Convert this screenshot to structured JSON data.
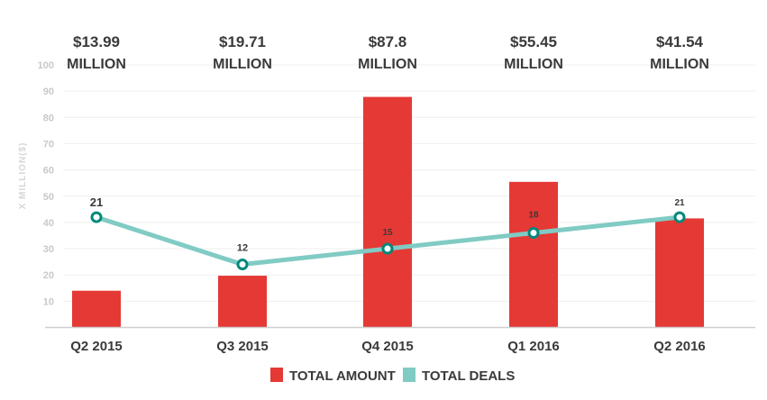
{
  "chart_data": {
    "type": "bar",
    "categories": [
      "Q2 2015",
      "Q3 2015",
      "Q4 2015",
      "Q1 2016",
      "Q2 2016"
    ],
    "series": [
      {
        "name": "TOTAL AMOUNT",
        "kind": "bar",
        "color": "#e53935",
        "values": [
          13.99,
          19.71,
          87.8,
          55.45,
          41.54
        ],
        "labels": [
          [
            "$13.99",
            "MILLION"
          ],
          [
            "$19.71",
            "MILLION"
          ],
          [
            "$87.8",
            "MILLION"
          ],
          [
            "$55.45",
            "MILLION"
          ],
          [
            "$41.54",
            "MILLION"
          ]
        ]
      },
      {
        "name": "TOTAL DEALS",
        "kind": "line",
        "color": "#80cbc4",
        "marker_color": "#00897b",
        "values": [
          21,
          12,
          15,
          18,
          21
        ],
        "plotted_on_amount_axis": [
          42,
          24,
          30,
          36,
          42
        ]
      }
    ],
    "ylabel": "X MILLION($)",
    "xlabel": "",
    "ylim": [
      0,
      100
    ],
    "yticks": [
      10,
      20,
      30,
      40,
      50,
      60,
      70,
      80,
      90,
      100
    ],
    "grid": true,
    "legend": "bottom-center"
  }
}
